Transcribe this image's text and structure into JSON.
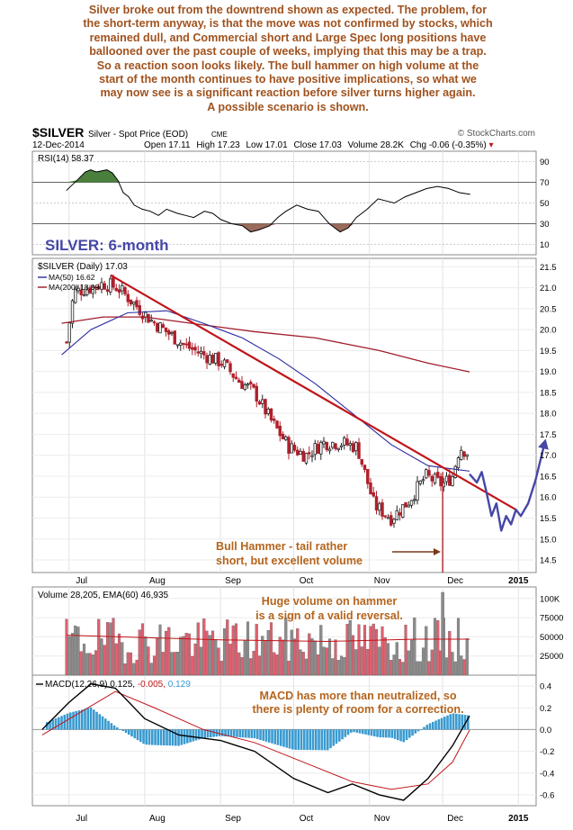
{
  "commentary": "Silver broke out from the downtrend shown as expected. The problem, for\nthe short-term anyway, is that the move was not confirmed by stocks, which\nremained dull, and Commercial short and Large Spec long positions have\nballooned over the past couple of weeks, implying that this may be a trap.\nSo a reaction soon looks likely. The bull hammer on high volume at the\nstart of the month continues to have positive implications, so what we\nmay now see is a significant reaction before silver turns higher again.\nA possible scenario is shown.",
  "header": {
    "symbol": "$SILVER",
    "name": "Silver - Spot Price (EOD)",
    "exchange": "CME",
    "watermark": "© StockCharts.com",
    "date": "12-Dec-2014",
    "open_label": "Open",
    "open": "17.11",
    "high_label": "High",
    "high": "17.23",
    "low_label": "Low",
    "low": "17.01",
    "close_label": "Close",
    "close": "17.03",
    "volume_label": "Volume",
    "volume": "28.2K",
    "chg_label": "Chg",
    "chg": "-0.06 (-0.35%)"
  },
  "rsi": {
    "label": "RSI(14) 58.37",
    "ticks": [
      "90",
      "70",
      "50",
      "30",
      "10"
    ]
  },
  "price_panel": {
    "title_overlay": "SILVER: 6-month",
    "legend_main": "$SILVER (Daily) 17.03",
    "legend_ma50": "MA(50) 16.62",
    "legend_ma200": "MA(200) 18.99",
    "ticks": [
      "21.5",
      "21.0",
      "20.5",
      "20.0",
      "19.5",
      "19.0",
      "18.5",
      "18.0",
      "17.5",
      "17.0",
      "16.5",
      "16.0",
      "15.5",
      "15.0",
      "14.5"
    ],
    "annotation_hammer": "Bull Hammer - tail rather\nshort, but excellent volume"
  },
  "volume_panel": {
    "label": "Volume 28,205, EMA(60) 46,935",
    "annotation": "Huge volume on hammer\nis a sign of a valid reversal.",
    "ticks": [
      "100K",
      "75000",
      "50000",
      "25000"
    ]
  },
  "macd_panel": {
    "label_prefix": "MACD(12,26,9)",
    "v1": "0.125,",
    "v2": "-0.005,",
    "v3": "0.129",
    "annotation": "MACD has more than neutralized, so\nthere is plenty of room for a correction.",
    "ticks": [
      "0.4",
      "0.2",
      "0.0",
      "-0.2",
      "-0.4",
      "-0.6"
    ]
  },
  "x_axis": {
    "months": [
      "Jul",
      "Aug",
      "Sep",
      "Oct",
      "Nov",
      "Dec",
      "2015"
    ]
  },
  "colors": {
    "commentary": "#a0521e",
    "annotation": "#b5651d",
    "trendline": "#c0161a",
    "projection": "#4547a6",
    "ma50": "#2a2aa0",
    "ma200": "#a01c2c",
    "candle_up": "#222222",
    "candle_down": "#b0202c",
    "vol_up": "#8c8c8c",
    "vol_down": "#e06070",
    "macd_hist": "#3a9ad0",
    "rsi_high": "#4a7f3c",
    "rsi_low": "#9a6a5a"
  },
  "chart_data": [
    {
      "type": "candlestick",
      "title": "$SILVER (Daily)",
      "ylim": [
        14.2,
        21.7
      ],
      "x": [
        "2014-07",
        "2014-08",
        "2014-09",
        "2014-10",
        "2014-11",
        "2014-12"
      ],
      "series": [
        {
          "name": "$SILVER (Daily)",
          "close_path": [
            [
              "2014-06-30",
              19.7
            ],
            [
              "2014-07-03",
              20.9
            ],
            [
              "2014-07-10",
              21.0
            ],
            [
              "2014-07-15",
              21.1
            ],
            [
              "2014-07-21",
              21.0
            ],
            [
              "2014-07-28",
              20.6
            ],
            [
              "2014-08-04",
              20.2
            ],
            [
              "2014-08-11",
              19.9
            ],
            [
              "2014-08-18",
              19.6
            ],
            [
              "2014-08-25",
              19.4
            ],
            [
              "2014-09-02",
              19.2
            ],
            [
              "2014-09-08",
              18.8
            ],
            [
              "2014-09-15",
              18.5
            ],
            [
              "2014-09-22",
              17.8
            ],
            [
              "2014-09-29",
              17.2
            ],
            [
              "2014-10-06",
              17.0
            ],
            [
              "2014-10-13",
              17.3
            ],
            [
              "2014-10-20",
              17.3
            ],
            [
              "2014-10-27",
              17.2
            ],
            [
              "2014-11-03",
              15.8
            ],
            [
              "2014-11-10",
              15.5
            ],
            [
              "2014-11-17",
              15.9
            ],
            [
              "2014-11-24",
              16.5
            ],
            [
              "2014-12-01",
              16.3
            ],
            [
              "2014-12-05",
              16.5
            ],
            [
              "2014-12-08",
              17.2
            ],
            [
              "2014-12-12",
              17.03
            ]
          ]
        },
        {
          "name": "MA(50)",
          "last": 16.62
        },
        {
          "name": "MA(200)",
          "last": 18.99
        }
      ]
    },
    {
      "type": "line",
      "title": "RSI(14)",
      "ylim": [
        0,
        100
      ],
      "series": [
        {
          "name": "RSI(14)",
          "last": 58.37
        }
      ]
    },
    {
      "type": "bar",
      "title": "Volume",
      "series": [
        {
          "name": "Volume",
          "last": 28205
        },
        {
          "name": "EMA(60)",
          "last": 46935
        }
      ]
    },
    {
      "type": "line",
      "title": "MACD(12,26,9)",
      "ylim": [
        -0.7,
        0.5
      ],
      "series": [
        {
          "name": "MACD",
          "last": 0.125
        },
        {
          "name": "Signal",
          "last": -0.005
        },
        {
          "name": "Histogram",
          "last": 0.129
        }
      ]
    }
  ]
}
